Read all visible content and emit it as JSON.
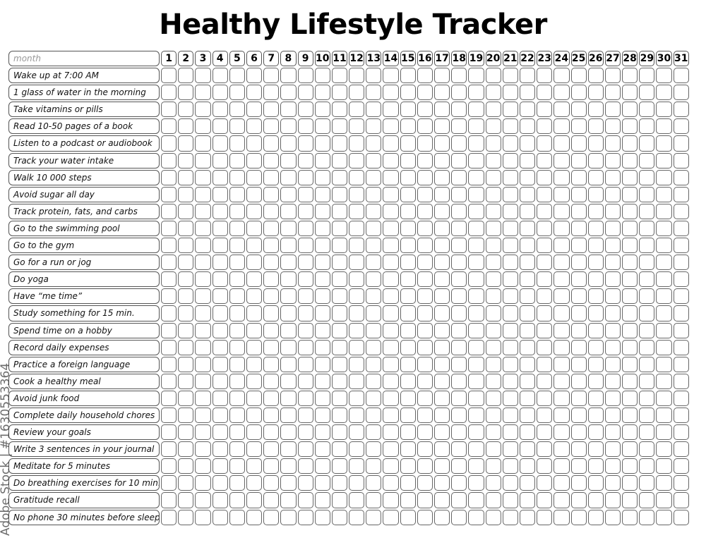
{
  "title": "Healthy Lifestyle Tracker",
  "month_placeholder": "month",
  "days": [
    1,
    2,
    3,
    4,
    5,
    6,
    7,
    8,
    9,
    10,
    11,
    12,
    13,
    14,
    15,
    16,
    17,
    18,
    19,
    20,
    21,
    22,
    23,
    24,
    25,
    26,
    27,
    28,
    29,
    30,
    31
  ],
  "habits": [
    "Wake up at 7:00 AM",
    "1 glass of water in the morning",
    "Take vitamins or pills",
    "Read 10-50 pages of a book",
    "Listen to a podcast or audiobook",
    "Track your water intake",
    "Walk 10 000 steps",
    "Avoid sugar all day",
    "Track protein, fats, and carbs",
    "Go to the swimming pool",
    "Go to the gym",
    "Go for a run or jog",
    "Do yoga",
    "Have “me time”",
    "Study something for 15 min.",
    "Spend time on a hobby",
    "Record daily expenses",
    "Practice a foreign language",
    "Cook a healthy meal",
    "Avoid junk food",
    "Complete daily household chores",
    "Review your goals",
    "Write 3 sentences in your journal",
    "Meditate for 5 minutes",
    "Do breathing exercises for 10 min.",
    "Gratitude recall",
    "No phone 30 minutes before sleep"
  ],
  "watermark": "Adobe Stock | #1630553364"
}
